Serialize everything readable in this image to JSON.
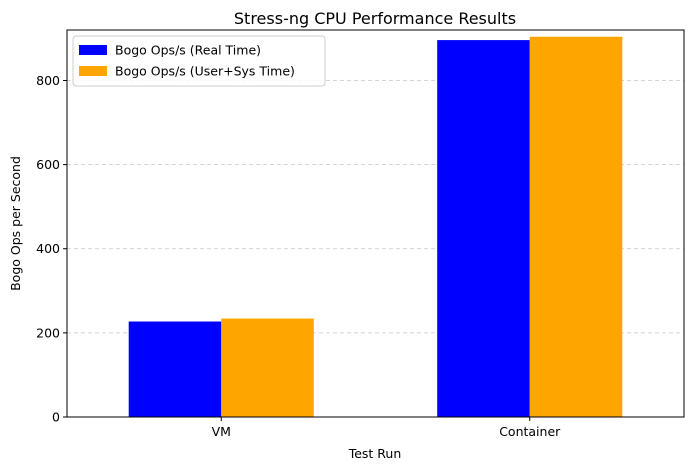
{
  "chart_data": {
    "type": "bar",
    "title": "Stress-ng CPU Performance Results",
    "xlabel": "Test Run",
    "ylabel": "Bogo Ops per Second",
    "categories": [
      "VM",
      "Container"
    ],
    "series": [
      {
        "name": "Bogo Ops/s (Real Time)",
        "values": [
          227,
          896
        ],
        "color": "#0000ff"
      },
      {
        "name": "Bogo Ops/s (User+Sys Time)",
        "values": [
          234,
          904
        ],
        "color": "#ffa500"
      }
    ],
    "ylim": [
      0,
      920
    ],
    "yticks": [
      0,
      200,
      400,
      600,
      800
    ],
    "grid": {
      "axis": "y",
      "style": "dashed"
    },
    "legend": {
      "placement": "top-left"
    }
  }
}
